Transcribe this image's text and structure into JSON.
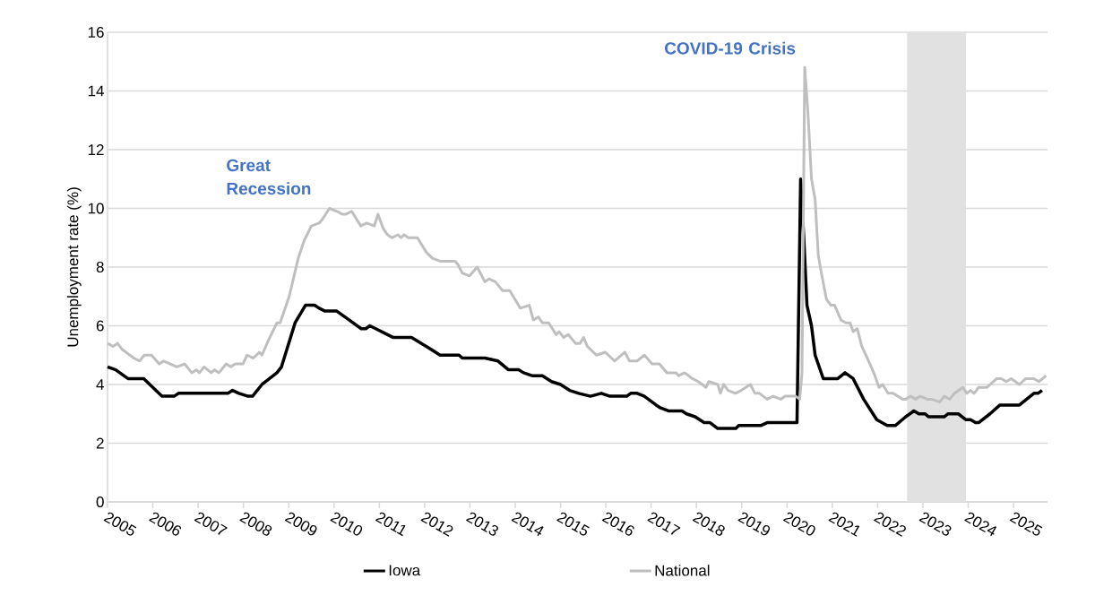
{
  "chart_data": {
    "type": "line",
    "ylabel": "Unemployment rate (%)",
    "xlim": [
      2005,
      2025.75
    ],
    "xticks": [
      2005,
      2006,
      2007,
      2008,
      2009,
      2010,
      2011,
      2012,
      2013,
      2014,
      2015,
      2016,
      2017,
      2018,
      2019,
      2020,
      2021,
      2022,
      2023,
      2024,
      2025
    ],
    "ylim": [
      0,
      16
    ],
    "yticks": [
      0,
      2,
      4,
      6,
      8,
      10,
      12,
      14,
      16
    ],
    "grid": "y",
    "legend": "bottom",
    "annotations": [
      "Great Recession",
      "COVID-19 Crisis"
    ],
    "bands": [
      {
        "axis": "x",
        "from": 2022.65,
        "to": 2023.95,
        "color": "#e1e1e1"
      }
    ],
    "series": [
      {
        "name": "Iowa",
        "color": "#000000",
        "x": [
          2005.0,
          2005.18,
          2005.45,
          2005.8,
          2006.2,
          2006.47,
          2006.57,
          2007.66,
          2007.76,
          2007.9,
          2008.1,
          2008.2,
          2008.41,
          2008.74,
          2008.84,
          2009.14,
          2009.37,
          2009.57,
          2009.67,
          2009.8,
          2010.06,
          2010.33,
          2010.6,
          2010.7,
          2010.79,
          2010.92,
          2011.18,
          2011.31,
          2011.71,
          2012.14,
          2012.34,
          2012.76,
          2012.83,
          2013.33,
          2013.62,
          2013.85,
          2014.08,
          2014.18,
          2014.37,
          2014.6,
          2014.8,
          2015.0,
          2015.2,
          2015.4,
          2015.66,
          2015.9,
          2016.09,
          2016.46,
          2016.55,
          2016.69,
          2016.85,
          2017.11,
          2017.21,
          2017.38,
          2017.68,
          2017.78,
          2017.97,
          2018.17,
          2018.3,
          2018.47,
          2018.87,
          2018.93,
          2019.42,
          2019.56,
          2020.22,
          2020.3,
          2020.37,
          2020.44,
          2020.54,
          2020.62,
          2020.8,
          2021.12,
          2021.28,
          2021.46,
          2021.69,
          2021.98,
          2022.21,
          2022.39,
          2022.62,
          2022.8,
          2022.91,
          2023.05,
          2023.12,
          2023.47,
          2023.55,
          2023.78,
          2023.95,
          2024.05,
          2024.16,
          2024.23,
          2024.48,
          2024.7,
          2025.13,
          2025.45,
          2025.54,
          2025.63
        ],
        "values": [
          4.6,
          4.5,
          4.2,
          4.2,
          3.6,
          3.6,
          3.7,
          3.7,
          3.8,
          3.7,
          3.6,
          3.6,
          4.0,
          4.4,
          4.6,
          6.1,
          6.7,
          6.7,
          6.6,
          6.5,
          6.5,
          6.2,
          5.9,
          5.9,
          6.0,
          5.9,
          5.7,
          5.6,
          5.6,
          5.2,
          5.0,
          5.0,
          4.9,
          4.9,
          4.8,
          4.5,
          4.5,
          4.4,
          4.3,
          4.3,
          4.1,
          4.0,
          3.8,
          3.7,
          3.6,
          3.7,
          3.6,
          3.6,
          3.7,
          3.7,
          3.6,
          3.3,
          3.2,
          3.1,
          3.1,
          3.0,
          2.9,
          2.7,
          2.7,
          2.5,
          2.5,
          2.6,
          2.6,
          2.7,
          2.7,
          11.0,
          9.0,
          6.7,
          6.0,
          5.0,
          4.2,
          4.2,
          4.4,
          4.2,
          3.5,
          2.8,
          2.6,
          2.6,
          2.9,
          3.1,
          3.0,
          3.0,
          2.9,
          2.9,
          3.0,
          3.0,
          2.8,
          2.8,
          2.7,
          2.7,
          3.0,
          3.3,
          3.3,
          3.7,
          3.7,
          3.8
        ]
      },
      {
        "name": "National",
        "color": "#bfbfbf",
        "x": [
          2005.0,
          2005.12,
          2005.22,
          2005.32,
          2005.58,
          2005.71,
          2005.81,
          2005.97,
          2006.14,
          2006.24,
          2006.53,
          2006.7,
          2006.86,
          2006.96,
          2007.03,
          2007.13,
          2007.29,
          2007.36,
          2007.46,
          2007.62,
          2007.72,
          2007.82,
          2007.99,
          2008.08,
          2008.22,
          2008.35,
          2008.41,
          2008.55,
          2008.74,
          2008.81,
          2009.01,
          2009.21,
          2009.34,
          2009.5,
          2009.67,
          2009.73,
          2009.9,
          2010.06,
          2010.19,
          2010.26,
          2010.39,
          2010.59,
          2010.72,
          2010.89,
          2010.97,
          2011.09,
          2011.18,
          2011.28,
          2011.41,
          2011.48,
          2011.55,
          2011.64,
          2011.84,
          2012.04,
          2012.17,
          2012.34,
          2012.67,
          2012.73,
          2012.83,
          2012.99,
          2013.16,
          2013.33,
          2013.42,
          2013.56,
          2013.72,
          2013.88,
          2014.11,
          2014.31,
          2014.4,
          2014.51,
          2014.6,
          2014.74,
          2014.9,
          2014.97,
          2015.07,
          2015.17,
          2015.33,
          2015.43,
          2015.51,
          2015.59,
          2015.79,
          2015.99,
          2016.19,
          2016.42,
          2016.52,
          2016.69,
          2016.85,
          2017.02,
          2017.18,
          2017.35,
          2017.55,
          2017.61,
          2017.74,
          2017.91,
          2018.04,
          2018.21,
          2018.27,
          2018.47,
          2018.53,
          2018.6,
          2018.7,
          2018.86,
          2018.99,
          2019.19,
          2019.29,
          2019.39,
          2019.56,
          2019.69,
          2019.86,
          2019.96,
          2020.19,
          2020.28,
          2020.33,
          2020.39,
          2020.46,
          2020.54,
          2020.62,
          2020.69,
          2020.77,
          2020.87,
          2020.97,
          2021.05,
          2021.19,
          2021.3,
          2021.39,
          2021.46,
          2021.55,
          2021.65,
          2021.83,
          2021.94,
          2022.03,
          2022.11,
          2022.23,
          2022.34,
          2022.55,
          2022.62,
          2022.73,
          2022.84,
          2022.94,
          2023.09,
          2023.19,
          2023.37,
          2023.47,
          2023.59,
          2023.7,
          2023.88,
          2023.97,
          2024.05,
          2024.13,
          2024.23,
          2024.41,
          2024.63,
          2024.73,
          2024.84,
          2024.95,
          2025.13,
          2025.27,
          2025.45,
          2025.56,
          2025.72
        ],
        "values": [
          5.4,
          5.3,
          5.4,
          5.2,
          4.9,
          4.8,
          5.0,
          5.0,
          4.7,
          4.8,
          4.6,
          4.7,
          4.4,
          4.5,
          4.4,
          4.6,
          4.4,
          4.5,
          4.4,
          4.7,
          4.6,
          4.7,
          4.7,
          5.0,
          4.9,
          5.1,
          5.0,
          5.5,
          6.1,
          6.1,
          7.0,
          8.3,
          8.9,
          9.4,
          9.5,
          9.6,
          10.0,
          9.9,
          9.8,
          9.8,
          9.9,
          9.4,
          9.5,
          9.4,
          9.8,
          9.3,
          9.1,
          9.0,
          9.1,
          9.0,
          9.1,
          9.0,
          9.0,
          8.5,
          8.3,
          8.2,
          8.2,
          8.1,
          7.8,
          7.7,
          8.0,
          7.5,
          7.6,
          7.5,
          7.2,
          7.2,
          6.6,
          6.7,
          6.2,
          6.3,
          6.1,
          6.1,
          5.7,
          5.8,
          5.6,
          5.7,
          5.4,
          5.4,
          5.6,
          5.3,
          5.0,
          5.1,
          4.8,
          5.1,
          4.8,
          4.8,
          5.0,
          4.7,
          4.7,
          4.4,
          4.4,
          4.3,
          4.4,
          4.2,
          4.1,
          3.9,
          4.1,
          4.0,
          3.7,
          4.0,
          3.8,
          3.7,
          3.8,
          4.0,
          3.7,
          3.7,
          3.5,
          3.6,
          3.5,
          3.6,
          3.6,
          3.5,
          4.4,
          14.8,
          13.3,
          11.0,
          10.3,
          8.4,
          7.7,
          6.9,
          6.7,
          6.7,
          6.2,
          6.1,
          6.1,
          5.8,
          5.9,
          5.3,
          4.7,
          4.3,
          3.9,
          4.0,
          3.7,
          3.7,
          3.5,
          3.5,
          3.6,
          3.5,
          3.6,
          3.5,
          3.5,
          3.4,
          3.6,
          3.5,
          3.7,
          3.9,
          3.7,
          3.8,
          3.7,
          3.9,
          3.9,
          4.2,
          4.2,
          4.1,
          4.2,
          4.0,
          4.2,
          4.2,
          4.1,
          4.3
        ]
      }
    ]
  }
}
